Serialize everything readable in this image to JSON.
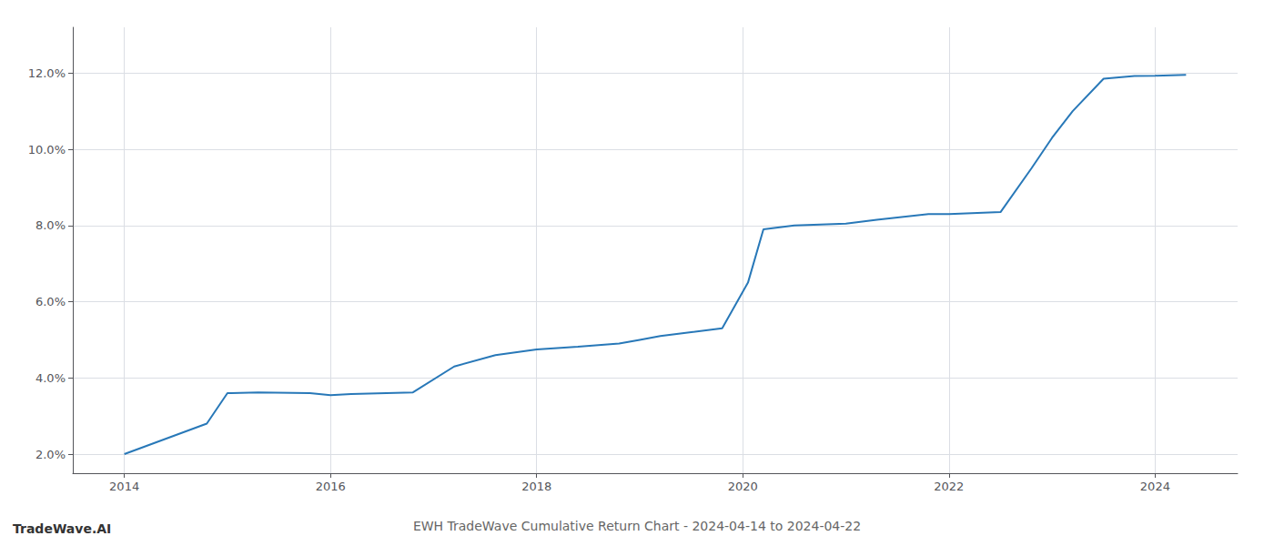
{
  "chart_data": {
    "type": "line",
    "title": "EWH TradeWave Cumulative Return Chart - 2024-04-14 to 2024-04-22",
    "annotations": [
      "TradeWave.AI"
    ],
    "x": [
      2014.0,
      2014.8,
      2015.0,
      2015.3,
      2015.8,
      2016.0,
      2016.2,
      2016.8,
      2017.2,
      2017.6,
      2018.0,
      2018.4,
      2018.8,
      2019.0,
      2019.2,
      2019.5,
      2019.8,
      2020.05,
      2020.2,
      2020.5,
      2021.0,
      2021.3,
      2021.8,
      2022.0,
      2022.5,
      2022.8,
      2023.0,
      2023.2,
      2023.5,
      2023.8,
      2024.0,
      2024.3
    ],
    "values": [
      2.0,
      2.8,
      3.6,
      3.62,
      3.6,
      3.55,
      3.58,
      3.62,
      4.3,
      4.6,
      4.75,
      4.82,
      4.9,
      5.0,
      5.1,
      5.2,
      5.3,
      6.5,
      7.9,
      8.0,
      8.05,
      8.15,
      8.3,
      8.3,
      8.35,
      9.5,
      10.3,
      11.0,
      11.85,
      11.92,
      11.93,
      11.95
    ],
    "color": "#2878b8",
    "xlim": [
      2013.5,
      2024.8
    ],
    "ylim": [
      1.5,
      13.2
    ],
    "xticks": [
      2014,
      2016,
      2018,
      2020,
      2022,
      2024
    ],
    "yticks": [
      {
        "value": 2.0,
        "label": "2.0%"
      },
      {
        "value": 4.0,
        "label": "4.0%"
      },
      {
        "value": 6.0,
        "label": "6.0%"
      },
      {
        "value": 8.0,
        "label": "8.0%"
      },
      {
        "value": 10.0,
        "label": "10.0%"
      },
      {
        "value": 12.0,
        "label": "12.0%"
      }
    ],
    "grid": true
  }
}
